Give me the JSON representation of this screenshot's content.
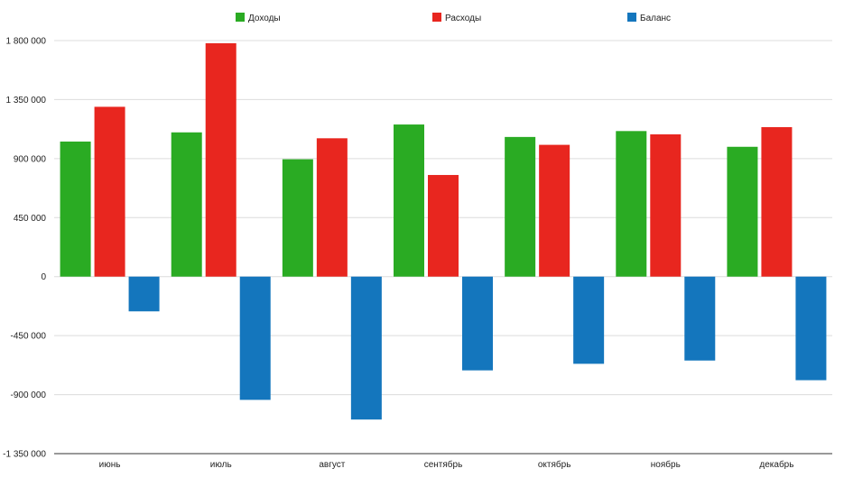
{
  "chart_data": {
    "type": "bar",
    "title": "",
    "xlabel": "",
    "ylabel": "",
    "categories": [
      "июнь",
      "июль",
      "август",
      "сентябрь",
      "октябрь",
      "ноябрь",
      "декабрь"
    ],
    "series": [
      {
        "name": "Доходы",
        "color": "#2aab23",
        "values": [
          1030000,
          1100000,
          895000,
          1160000,
          1065000,
          1110000,
          990000
        ]
      },
      {
        "name": "Расходы",
        "color": "#e8261f",
        "values": [
          1295000,
          1780000,
          1055000,
          775000,
          1005000,
          1085000,
          1140000
        ]
      },
      {
        "name": "Баланс",
        "color": "#1476bd",
        "values": [
          -265000,
          -940000,
          -1090000,
          -715000,
          -665000,
          -640000,
          -790000
        ]
      }
    ],
    "ylim": [
      -1350000,
      1800000
    ],
    "yticks": [
      1800000,
      1350000,
      900000,
      450000,
      0,
      -450000,
      -900000,
      -1350000
    ],
    "ytick_labels": [
      "1 800 000",
      "1 350 000",
      "900 000",
      "450 000",
      "0",
      "-450 000",
      "-900 000",
      "-1 350 000"
    ],
    "grid": true,
    "legend_position": "top"
  }
}
